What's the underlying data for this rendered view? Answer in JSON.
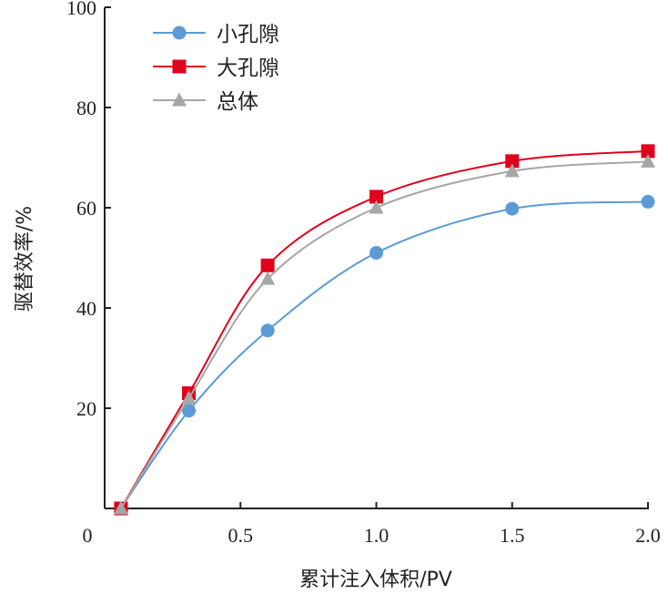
{
  "chart_data": {
    "type": "line",
    "title": "",
    "xlabel": "累计注入体积/PV",
    "ylabel": "驱替效率/%",
    "xlim": [
      0,
      2.0
    ],
    "ylim": [
      0,
      100
    ],
    "x_ticks": [
      0,
      0.5,
      1.0,
      1.5,
      2.0
    ],
    "x_tick_labels": [
      "0",
      "0.5",
      "1.0",
      "1.5",
      "2.0"
    ],
    "y_ticks": [
      20,
      40,
      60,
      80,
      100
    ],
    "y_tick_labels": [
      "20",
      "40",
      "60",
      "80",
      "100"
    ],
    "grid": false,
    "legend_position": "top-left",
    "x": [
      0.06,
      0.31,
      0.6,
      1.0,
      1.5,
      2.0
    ],
    "series": [
      {
        "name": "小孔隙",
        "marker": "circle",
        "color": "#5b9bd5",
        "values": [
          0,
          19.5,
          35.5,
          51,
          59.8,
          61.2
        ]
      },
      {
        "name": "大孔隙",
        "marker": "square",
        "color": "#e0001b",
        "values": [
          0,
          23,
          48.5,
          62.2,
          69.3,
          71.3
        ]
      },
      {
        "name": "总体",
        "marker": "triangle",
        "color": "#a6a6a6",
        "values": [
          0,
          22,
          45.8,
          60,
          67.3,
          69.2
        ]
      }
    ]
  }
}
